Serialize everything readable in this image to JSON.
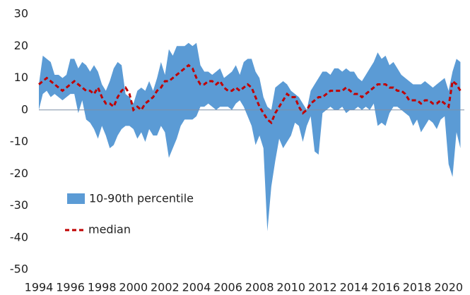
{
  "chart_data": {
    "type": "band-line",
    "x": [
      1994,
      1994.25,
      1994.5,
      1994.75,
      1995,
      1995.25,
      1995.5,
      1995.75,
      1996,
      1996.25,
      1996.5,
      1996.75,
      1997,
      1997.25,
      1997.5,
      1997.75,
      1998,
      1998.25,
      1998.5,
      1998.75,
      1999,
      1999.25,
      1999.5,
      1999.75,
      2000,
      2000.25,
      2000.5,
      2000.75,
      2001,
      2001.25,
      2001.5,
      2001.75,
      2002,
      2002.25,
      2002.5,
      2002.75,
      2003,
      2003.25,
      2003.5,
      2003.75,
      2004,
      2004.25,
      2004.5,
      2004.75,
      2005,
      2005.25,
      2005.5,
      2005.75,
      2006,
      2006.25,
      2006.5,
      2006.75,
      2007,
      2007.25,
      2007.5,
      2007.75,
      2008,
      2008.25,
      2008.5,
      2008.75,
      2009,
      2009.25,
      2009.5,
      2009.75,
      2010,
      2010.25,
      2010.5,
      2010.75,
      2011,
      2011.25,
      2011.5,
      2011.75,
      2012,
      2012.25,
      2012.5,
      2012.75,
      2013,
      2013.25,
      2013.5,
      2013.75,
      2014,
      2014.25,
      2014.5,
      2014.75,
      2015,
      2015.25,
      2015.5,
      2015.75,
      2016,
      2016.25,
      2016.5,
      2016.75,
      2017,
      2017.25,
      2017.5,
      2017.75,
      2018,
      2018.25,
      2018.5,
      2018.75,
      2019,
      2019.25,
      2019.5,
      2019.75,
      2020,
      2020.25,
      2020.5,
      2020.75
    ],
    "series": [
      {
        "name": "10-90th percentile",
        "color": "#5b9bd5",
        "upper": [
          8,
          17,
          16,
          15,
          11,
          11,
          10,
          11,
          16,
          16,
          13,
          15,
          14,
          12,
          14,
          12,
          8,
          6,
          9,
          13,
          15,
          14,
          5,
          4,
          2,
          6,
          7,
          6,
          9,
          6,
          10,
          15,
          11,
          19,
          17,
          20,
          20,
          20,
          21,
          20,
          21,
          14,
          12,
          12,
          11,
          12,
          13,
          10,
          11,
          12,
          14,
          11,
          15,
          16,
          16,
          12,
          10,
          4,
          1,
          0,
          7,
          8,
          9,
          8,
          6,
          5,
          4,
          2,
          0,
          6,
          8,
          10,
          12,
          12,
          11,
          13,
          13,
          12,
          13,
          12,
          12,
          10,
          9,
          11,
          13,
          15,
          18,
          16,
          17,
          14,
          15,
          13,
          11,
          10,
          9,
          8,
          8,
          8,
          9,
          8,
          7,
          8,
          9,
          10,
          6,
          12,
          16,
          15
        ],
        "lower": [
          0,
          5,
          6,
          4,
          5,
          4,
          3,
          4,
          5,
          5,
          -1,
          3,
          -3,
          -4,
          -6,
          -9,
          -5,
          -8,
          -12,
          -11,
          -8,
          -6,
          -5,
          -5,
          -6,
          -9,
          -7,
          -10,
          -6,
          -8,
          -8,
          -5,
          -7,
          -15,
          -12,
          -9,
          -5,
          -3,
          -3,
          -3,
          -2,
          1,
          1,
          2,
          1,
          0,
          1,
          1,
          1,
          0,
          2,
          3,
          1,
          -2,
          -5,
          -11,
          -8,
          -12,
          -38,
          -24,
          -16,
          -9,
          -12,
          -10,
          -8,
          -4,
          -5,
          -10,
          -5,
          -2,
          -13,
          -14,
          -1,
          0,
          1,
          0,
          0,
          1,
          -1,
          0,
          0,
          1,
          0,
          1,
          0,
          2,
          -5,
          -4,
          -5,
          -1,
          1,
          1,
          0,
          -1,
          -2,
          -5,
          -3,
          -7,
          -5,
          -3,
          -4,
          -6,
          -3,
          -2,
          -17,
          -21,
          -7,
          -12
        ]
      },
      {
        "name": "median",
        "color": "#c00000",
        "values": [
          8,
          9,
          10,
          9,
          8,
          7,
          6,
          7,
          8,
          9,
          8,
          7,
          6,
          6,
          5,
          7,
          4,
          2,
          2,
          1,
          4,
          6,
          7,
          5,
          0,
          1,
          0,
          2,
          3,
          4,
          6,
          7,
          9,
          9,
          10,
          11,
          12,
          13,
          14,
          13,
          10,
          8,
          8,
          9,
          9,
          8,
          9,
          7,
          6,
          6,
          7,
          6,
          7,
          8,
          7,
          4,
          1,
          -1,
          -3,
          -4,
          -1,
          1,
          3,
          5,
          4,
          4,
          1,
          -1,
          0,
          2,
          3,
          4,
          4,
          5,
          6,
          6,
          6,
          6,
          7,
          6,
          5,
          5,
          4,
          5,
          6,
          7,
          8,
          8,
          8,
          7,
          7,
          6,
          6,
          5,
          3,
          3,
          3,
          2,
          3,
          3,
          2,
          2,
          3,
          2,
          1,
          9,
          8,
          6
        ]
      }
    ],
    "xlim": [
      1994,
      2021
    ],
    "xticks": [
      1994,
      1996,
      1998,
      2000,
      2002,
      2004,
      2006,
      2008,
      2010,
      2012,
      2014,
      2016,
      2018,
      2020
    ],
    "ylim": [
      -50,
      30
    ],
    "yticks": [
      -50,
      -40,
      -30,
      -20,
      -10,
      0,
      10,
      20,
      30
    ]
  }
}
